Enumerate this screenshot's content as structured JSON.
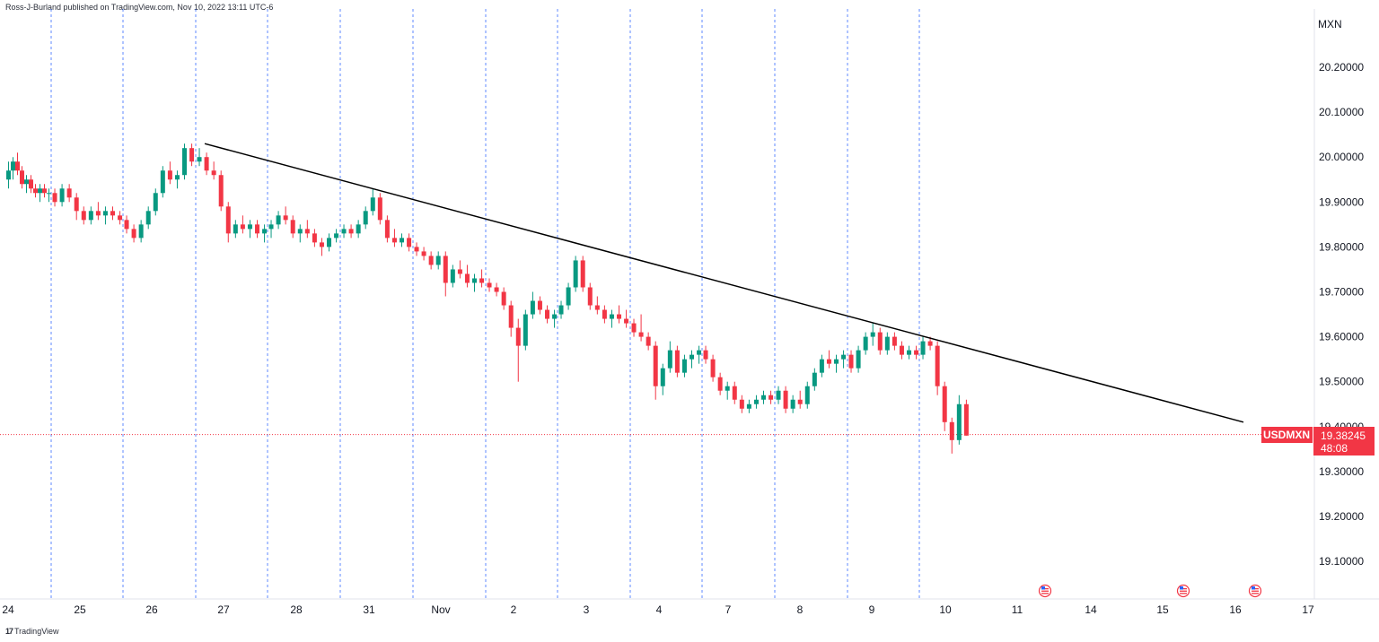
{
  "header": {
    "published": "Ross-J-Burland published on TradingView.com, Nov 10, 2022 13:11 UTC-6"
  },
  "footer": {
    "brand": "TradingView",
    "logo": "17"
  },
  "price_tag": {
    "symbol": "USDMXN",
    "price": "19.38245",
    "countdown": "48:08",
    "color": "#f23645"
  },
  "colors": {
    "up": "#089981",
    "down": "#f23645",
    "separator": "#2962ff",
    "trendline": "#000000"
  },
  "icons": [
    "us-flag-event-icon",
    "us-flag-event-icon",
    "us-flag-event-icon"
  ],
  "chart_data": {
    "type": "candlestick",
    "instrument": "USDMXN",
    "y_unit": "MXN",
    "ylim": [
      19.03,
      20.3
    ],
    "y_ticks": [
      "20.20000",
      "20.10000",
      "20.00000",
      "19.90000",
      "19.80000",
      "19.70000",
      "19.60000",
      "19.50000",
      "19.40000",
      "19.30000",
      "19.20000",
      "19.10000"
    ],
    "x_ticks": [
      "24",
      "25",
      "26",
      "27",
      "28",
      "31",
      "Nov",
      "2",
      "3",
      "4",
      "7",
      "8",
      "9",
      "10",
      "11",
      "14",
      "15",
      "16",
      "17"
    ],
    "last_price": 19.38245,
    "trendline": [
      {
        "date": "Oct 26",
        "price": 20.03
      },
      {
        "date": "Nov 16",
        "price": 19.41
      }
    ],
    "series": [
      {
        "date": "Oct 24",
        "ohlc": [
          [
            19.95,
            19.99,
            19.93,
            19.97
          ],
          [
            19.97,
            20.0,
            19.95,
            19.99
          ],
          [
            19.99,
            20.01,
            19.96,
            19.97
          ],
          [
            19.97,
            19.98,
            19.93,
            19.94
          ],
          [
            19.94,
            19.96,
            19.92,
            19.95
          ],
          [
            19.95,
            19.96,
            19.92,
            19.93
          ],
          [
            19.93,
            19.94,
            19.91,
            19.92
          ],
          [
            19.92,
            19.94,
            19.9,
            19.93
          ],
          [
            19.93,
            19.94,
            19.91,
            19.92
          ],
          [
            19.92,
            19.93,
            19.9,
            19.92
          ]
        ]
      },
      {
        "date": "Oct 25",
        "ohlc": [
          [
            19.92,
            19.93,
            19.89,
            19.9
          ],
          [
            19.9,
            19.94,
            19.89,
            19.93
          ],
          [
            19.93,
            19.94,
            19.9,
            19.91
          ],
          [
            19.91,
            19.92,
            19.86,
            19.88
          ],
          [
            19.88,
            19.89,
            19.85,
            19.86
          ],
          [
            19.86,
            19.89,
            19.85,
            19.88
          ],
          [
            19.88,
            19.9,
            19.86,
            19.87
          ],
          [
            19.87,
            19.89,
            19.85,
            19.88
          ],
          [
            19.88,
            19.89,
            19.86,
            19.87
          ],
          [
            19.87,
            19.88,
            19.85,
            19.86
          ]
        ]
      },
      {
        "date": "Oct 26",
        "ohlc": [
          [
            19.86,
            19.87,
            19.83,
            19.84
          ],
          [
            19.84,
            19.85,
            19.81,
            19.82
          ],
          [
            19.82,
            19.86,
            19.81,
            19.85
          ],
          [
            19.85,
            19.89,
            19.84,
            19.88
          ],
          [
            19.88,
            19.93,
            19.87,
            19.92
          ],
          [
            19.92,
            19.98,
            19.91,
            19.97
          ],
          [
            19.97,
            19.99,
            19.94,
            19.95
          ],
          [
            19.95,
            19.97,
            19.93,
            19.96
          ],
          [
            19.96,
            20.03,
            19.95,
            20.02
          ],
          [
            20.02,
            20.03,
            19.98,
            19.99
          ]
        ]
      },
      {
        "date": "Oct 27",
        "ohlc": [
          [
            19.99,
            20.02,
            19.98,
            20.0
          ],
          [
            20.0,
            20.01,
            19.96,
            19.97
          ],
          [
            19.97,
            19.99,
            19.95,
            19.96
          ],
          [
            19.96,
            19.97,
            19.88,
            19.89
          ],
          [
            19.89,
            19.9,
            19.81,
            19.83
          ],
          [
            19.83,
            19.86,
            19.82,
            19.85
          ],
          [
            19.85,
            19.87,
            19.83,
            19.84
          ],
          [
            19.84,
            19.86,
            19.82,
            19.85
          ],
          [
            19.85,
            19.86,
            19.82,
            19.83
          ],
          [
            19.83,
            19.85,
            19.81,
            19.84
          ]
        ]
      },
      {
        "date": "Oct 28",
        "ohlc": [
          [
            19.84,
            19.86,
            19.82,
            19.85
          ],
          [
            19.85,
            19.88,
            19.84,
            19.87
          ],
          [
            19.87,
            19.89,
            19.85,
            19.86
          ],
          [
            19.86,
            19.87,
            19.82,
            19.83
          ],
          [
            19.83,
            19.85,
            19.81,
            19.84
          ],
          [
            19.84,
            19.86,
            19.82,
            19.83
          ],
          [
            19.83,
            19.84,
            19.8,
            19.81
          ],
          [
            19.81,
            19.82,
            19.78,
            19.8
          ],
          [
            19.8,
            19.83,
            19.79,
            19.82
          ],
          [
            19.82,
            19.84,
            19.81,
            19.83
          ]
        ]
      },
      {
        "date": "Oct 31",
        "ohlc": [
          [
            19.83,
            19.85,
            19.82,
            19.84
          ],
          [
            19.84,
            19.85,
            19.82,
            19.83
          ],
          [
            19.83,
            19.86,
            19.82,
            19.85
          ],
          [
            19.85,
            19.89,
            19.84,
            19.88
          ],
          [
            19.88,
            19.93,
            19.87,
            19.91
          ],
          [
            19.91,
            19.92,
            19.85,
            19.86
          ],
          [
            19.86,
            19.87,
            19.81,
            19.82
          ],
          [
            19.82,
            19.84,
            19.8,
            19.81
          ],
          [
            19.81,
            19.83,
            19.8,
            19.82
          ],
          [
            19.82,
            19.83,
            19.79,
            19.8
          ]
        ]
      },
      {
        "date": "Nov 1",
        "ohlc": [
          [
            19.8,
            19.81,
            19.78,
            19.79
          ],
          [
            19.79,
            19.8,
            19.77,
            19.78
          ],
          [
            19.78,
            19.79,
            19.75,
            19.76
          ],
          [
            19.76,
            19.79,
            19.75,
            19.78
          ],
          [
            19.78,
            19.79,
            19.69,
            19.72
          ],
          [
            19.72,
            19.76,
            19.71,
            19.75
          ],
          [
            19.75,
            19.77,
            19.73,
            19.74
          ],
          [
            19.74,
            19.76,
            19.71,
            19.72
          ],
          [
            19.72,
            19.74,
            19.7,
            19.73
          ],
          [
            19.73,
            19.75,
            19.71,
            19.72
          ]
        ]
      },
      {
        "date": "Nov 2",
        "ohlc": [
          [
            19.72,
            19.73,
            19.7,
            19.71
          ],
          [
            19.71,
            19.72,
            19.69,
            19.7
          ],
          [
            19.7,
            19.71,
            19.66,
            19.67
          ],
          [
            19.67,
            19.68,
            19.6,
            19.62
          ],
          [
            19.62,
            19.64,
            19.5,
            19.58
          ],
          [
            19.58,
            19.66,
            19.57,
            19.65
          ],
          [
            19.65,
            19.7,
            19.64,
            19.68
          ],
          [
            19.68,
            19.69,
            19.65,
            19.66
          ],
          [
            19.66,
            19.67,
            19.63,
            19.64
          ],
          [
            19.64,
            19.66,
            19.62,
            19.65
          ]
        ]
      },
      {
        "date": "Nov 3",
        "ohlc": [
          [
            19.65,
            19.68,
            19.64,
            19.67
          ],
          [
            19.67,
            19.72,
            19.66,
            19.71
          ],
          [
            19.71,
            19.78,
            19.7,
            19.77
          ],
          [
            19.77,
            19.78,
            19.7,
            19.71
          ],
          [
            19.71,
            19.72,
            19.66,
            19.67
          ],
          [
            19.67,
            19.69,
            19.65,
            19.66
          ],
          [
            19.66,
            19.67,
            19.63,
            19.64
          ],
          [
            19.64,
            19.66,
            19.62,
            19.65
          ],
          [
            19.65,
            19.67,
            19.63,
            19.64
          ],
          [
            19.64,
            19.66,
            19.62,
            19.63
          ]
        ]
      },
      {
        "date": "Nov 4",
        "ohlc": [
          [
            19.63,
            19.64,
            19.6,
            19.61
          ],
          [
            19.61,
            19.65,
            19.59,
            19.6
          ],
          [
            19.6,
            19.61,
            19.57,
            19.58
          ],
          [
            19.58,
            19.59,
            19.46,
            19.49
          ],
          [
            19.49,
            19.54,
            19.47,
            19.53
          ],
          [
            19.53,
            19.59,
            19.52,
            19.57
          ],
          [
            19.57,
            19.58,
            19.51,
            19.52
          ],
          [
            19.52,
            19.56,
            19.51,
            19.55
          ],
          [
            19.55,
            19.57,
            19.53,
            19.56
          ],
          [
            19.56,
            19.58,
            19.54,
            19.57
          ]
        ]
      },
      {
        "date": "Nov 7",
        "ohlc": [
          [
            19.57,
            19.58,
            19.54,
            19.55
          ],
          [
            19.55,
            19.56,
            19.5,
            19.51
          ],
          [
            19.51,
            19.52,
            19.47,
            19.48
          ],
          [
            19.48,
            19.5,
            19.46,
            19.49
          ],
          [
            19.49,
            19.5,
            19.45,
            19.46
          ],
          [
            19.46,
            19.47,
            19.43,
            19.44
          ],
          [
            19.44,
            19.46,
            19.43,
            19.45
          ],
          [
            19.45,
            19.47,
            19.44,
            19.46
          ],
          [
            19.46,
            19.48,
            19.45,
            19.47
          ],
          [
            19.47,
            19.48,
            19.45,
            19.46
          ]
        ]
      },
      {
        "date": "Nov 8",
        "ohlc": [
          [
            19.46,
            19.49,
            19.45,
            19.48
          ],
          [
            19.48,
            19.49,
            19.43,
            19.44
          ],
          [
            19.44,
            19.47,
            19.43,
            19.46
          ],
          [
            19.46,
            19.48,
            19.44,
            19.45
          ],
          [
            19.45,
            19.5,
            19.44,
            19.49
          ],
          [
            19.49,
            19.53,
            19.48,
            19.52
          ],
          [
            19.52,
            19.56,
            19.51,
            19.55
          ],
          [
            19.55,
            19.57,
            19.53,
            19.54
          ],
          [
            19.54,
            19.56,
            19.52,
            19.55
          ],
          [
            19.55,
            19.57,
            19.53,
            19.56
          ]
        ]
      },
      {
        "date": "Nov 9",
        "ohlc": [
          [
            19.56,
            19.57,
            19.52,
            19.53
          ],
          [
            19.53,
            19.58,
            19.52,
            19.57
          ],
          [
            19.57,
            19.61,
            19.56,
            19.6
          ],
          [
            19.6,
            19.63,
            19.58,
            19.61
          ],
          [
            19.61,
            19.62,
            19.56,
            19.57
          ],
          [
            19.57,
            19.61,
            19.56,
            19.6
          ],
          [
            19.6,
            19.61,
            19.57,
            19.58
          ],
          [
            19.58,
            19.59,
            19.55,
            19.56
          ],
          [
            19.56,
            19.58,
            19.55,
            19.57
          ],
          [
            19.57,
            19.58,
            19.55,
            19.56
          ]
        ]
      },
      {
        "date": "Nov 10",
        "ohlc": [
          [
            19.56,
            19.6,
            19.55,
            19.59
          ],
          [
            19.59,
            19.6,
            19.57,
            19.58
          ],
          [
            19.58,
            19.59,
            19.47,
            19.49
          ],
          [
            19.49,
            19.5,
            19.39,
            19.41
          ],
          [
            19.41,
            19.42,
            19.34,
            19.37
          ],
          [
            19.37,
            19.47,
            19.36,
            19.45
          ],
          [
            19.45,
            19.46,
            19.38,
            19.38
          ]
        ]
      }
    ]
  }
}
